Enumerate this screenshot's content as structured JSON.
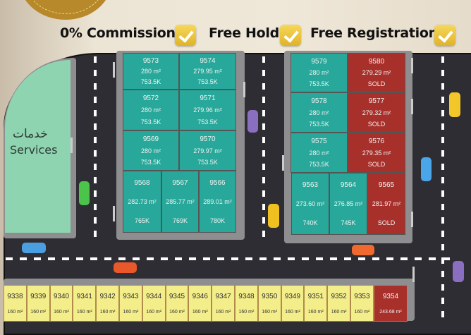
{
  "header": {
    "features": [
      {
        "label": "0% Commission",
        "icon": "checkbox-icon"
      },
      {
        "label": "Free Hold",
        "icon": "checkbox-icon"
      },
      {
        "label": "Free Registration",
        "icon": "checkbox-icon"
      }
    ]
  },
  "services": {
    "label_ar": "خدمات",
    "label_en": "Services"
  },
  "colors": {
    "available": "#27a89a",
    "sold": "#a8302b",
    "residential": "#f3ed8a",
    "services": "#8fd4b0",
    "road": "#2e2d33",
    "seal": "#b8892a"
  },
  "blocks": {
    "block_a": [
      {
        "id": "9573",
        "area": "280 m²",
        "price": "753.5K",
        "status": "available"
      },
      {
        "id": "9574",
        "area": "279.95 m²",
        "price": "753.5K",
        "status": "available"
      },
      {
        "id": "9572",
        "area": "280 m²",
        "price": "753.5K",
        "status": "available"
      },
      {
        "id": "9571",
        "area": "279.96 m²",
        "price": "753.5K",
        "status": "available"
      },
      {
        "id": "9569",
        "area": "280 m²",
        "price": "753.5K",
        "status": "available"
      },
      {
        "id": "9570",
        "area": "279.97 m²",
        "price": "753.5K",
        "status": "available"
      },
      {
        "id": "9568",
        "area": "282.73 m²",
        "price": "765K",
        "status": "available"
      },
      {
        "id": "9567",
        "area": "285.77 m²",
        "price": "769K",
        "status": "available"
      },
      {
        "id": "9566",
        "area": "289.01 m²",
        "price": "780K",
        "status": "available"
      }
    ],
    "block_b": [
      {
        "id": "9579",
        "area": "280 m²",
        "price": "753.5K",
        "status": "available"
      },
      {
        "id": "9580",
        "area": "279.29 m²",
        "price": "SOLD",
        "status": "sold"
      },
      {
        "id": "9578",
        "area": "280 m²",
        "price": "753.5K",
        "status": "available"
      },
      {
        "id": "9577",
        "area": "279.32 m²",
        "price": "SOLD",
        "status": "sold"
      },
      {
        "id": "9575",
        "area": "280 m²",
        "price": "753.5K",
        "status": "available"
      },
      {
        "id": "9576",
        "area": "279.35 m²",
        "price": "SOLD",
        "status": "sold"
      },
      {
        "id": "9563",
        "area": "273.60 m²",
        "price": "740K",
        "status": "available"
      },
      {
        "id": "9564",
        "area": "276.85 m²",
        "price": "745K",
        "status": "available"
      },
      {
        "id": "9565",
        "area": "281.97 m²",
        "price": "SOLD",
        "status": "sold"
      }
    ],
    "block_c": [
      {
        "id": "9338",
        "area": "160 m²",
        "status": "available"
      },
      {
        "id": "9339",
        "area": "160 m²",
        "status": "available"
      },
      {
        "id": "9340",
        "area": "160 m²",
        "status": "available"
      },
      {
        "id": "9341",
        "area": "160 m²",
        "status": "available"
      },
      {
        "id": "9342",
        "area": "160 m²",
        "status": "available"
      },
      {
        "id": "9343",
        "area": "160 m²",
        "status": "available"
      },
      {
        "id": "9344",
        "area": "160 m²",
        "status": "available"
      },
      {
        "id": "9345",
        "area": "160 m²",
        "status": "available"
      },
      {
        "id": "9346",
        "area": "160 m²",
        "status": "available"
      },
      {
        "id": "9347",
        "area": "160 m²",
        "status": "available"
      },
      {
        "id": "9348",
        "area": "160 m²",
        "status": "available"
      },
      {
        "id": "9350",
        "area": "160 m²",
        "status": "available"
      },
      {
        "id": "9349",
        "area": "160 m²",
        "status": "available"
      },
      {
        "id": "9351",
        "area": "160 m²",
        "status": "available"
      },
      {
        "id": "9352",
        "area": "160 m²",
        "status": "available"
      },
      {
        "id": "9353",
        "area": "160 m²",
        "status": "available"
      },
      {
        "id": "9354",
        "area": "243.68 m²",
        "status": "sold"
      }
    ]
  }
}
